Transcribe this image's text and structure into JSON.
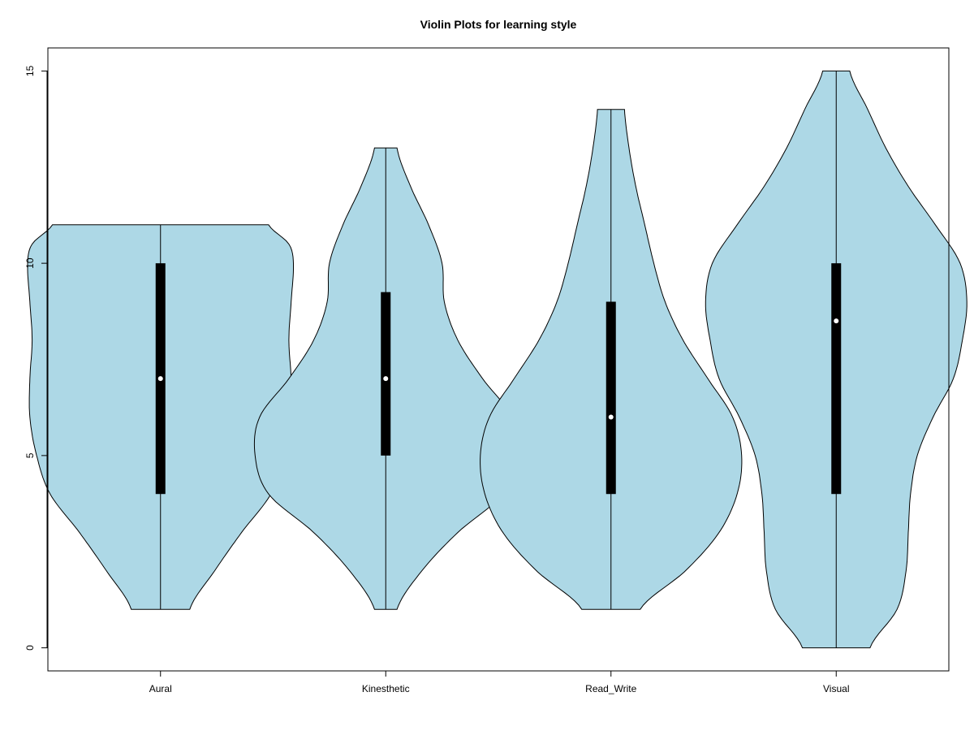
{
  "chart_data": {
    "type": "violin",
    "title": "Violin Plots for learning style",
    "xlabel": "",
    "ylabel": "",
    "ylim": [
      -0.6,
      15.6
    ],
    "yticks": [
      "0",
      "5",
      "10",
      "15"
    ],
    "categories": [
      "Aural",
      "Kinesthetic",
      "Read_Write",
      "Visual"
    ],
    "colors": {
      "fill": "#add8e6",
      "stroke": "#000000",
      "box": "#000000",
      "median": "#ffffff"
    },
    "series": [
      {
        "category": "Aural",
        "min": 1,
        "q1": 4,
        "median": 7,
        "q3": 10,
        "max": 11,
        "density": [
          [
            1,
            0.13
          ],
          [
            2,
            0.24
          ],
          [
            3,
            0.36
          ],
          [
            4,
            0.49
          ],
          [
            5,
            0.55
          ],
          [
            6,
            0.58
          ],
          [
            7,
            0.58
          ],
          [
            8,
            0.57
          ],
          [
            9,
            0.58
          ],
          [
            10,
            0.59
          ],
          [
            10.5,
            0.57
          ],
          [
            11,
            0.48
          ]
        ]
      },
      {
        "category": "Kinesthetic",
        "min": 1,
        "q1": 5,
        "median": 7,
        "q3": 9.25,
        "max": 13,
        "density": [
          [
            1,
            0.05
          ],
          [
            2,
            0.16
          ],
          [
            3,
            0.32
          ],
          [
            4,
            0.52
          ],
          [
            5,
            0.58
          ],
          [
            6,
            0.56
          ],
          [
            7,
            0.43
          ],
          [
            8,
            0.32
          ],
          [
            9,
            0.26
          ],
          [
            10,
            0.25
          ],
          [
            11,
            0.19
          ],
          [
            12,
            0.11
          ],
          [
            13,
            0.05
          ]
        ]
      },
      {
        "category": "Read_Write",
        "min": 1,
        "q1": 4,
        "median": 6,
        "q3": 9,
        "max": 14,
        "density": [
          [
            1,
            0.13
          ],
          [
            2,
            0.33
          ],
          [
            3,
            0.48
          ],
          [
            4,
            0.56
          ],
          [
            5,
            0.58
          ],
          [
            6,
            0.54
          ],
          [
            7,
            0.43
          ],
          [
            8,
            0.32
          ],
          [
            9,
            0.24
          ],
          [
            10,
            0.19
          ],
          [
            11,
            0.15
          ],
          [
            12,
            0.11
          ],
          [
            13,
            0.08
          ],
          [
            14,
            0.06
          ]
        ]
      },
      {
        "category": "Visual",
        "min": 0,
        "q1": 4,
        "median": 8.5,
        "q3": 10,
        "max": 15,
        "density": [
          [
            0,
            0.15
          ],
          [
            1,
            0.27
          ],
          [
            2,
            0.31
          ],
          [
            3,
            0.32
          ],
          [
            4,
            0.33
          ],
          [
            5,
            0.36
          ],
          [
            6,
            0.43
          ],
          [
            7,
            0.52
          ],
          [
            8,
            0.56
          ],
          [
            9,
            0.58
          ],
          [
            10,
            0.55
          ],
          [
            11,
            0.44
          ],
          [
            12,
            0.32
          ],
          [
            13,
            0.22
          ],
          [
            14,
            0.14
          ],
          [
            15,
            0.06
          ]
        ]
      }
    ]
  }
}
